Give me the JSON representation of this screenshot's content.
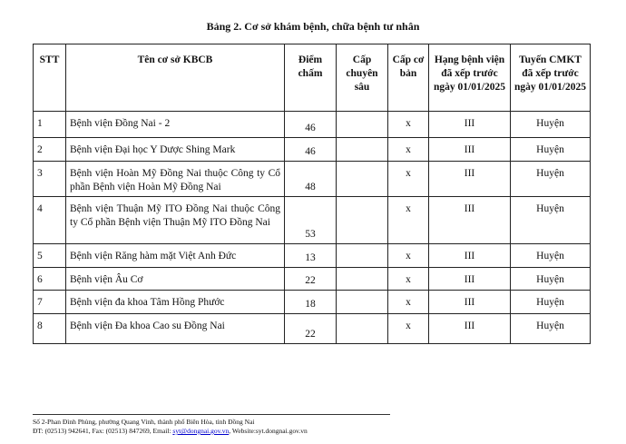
{
  "title": "Bảng 2. Cơ sở khám bệnh, chữa bệnh tư nhân",
  "headers": [
    "STT",
    "Tên cơ sở KBCB",
    "Điểm chấm",
    "Cấp chuyên sâu",
    "Cấp cơ bản",
    "Hạng bệnh viện đã xếp trước ngày 01/01/2025",
    "Tuyến CMKT đã xếp trước ngày 01/01/2025"
  ],
  "rows": [
    {
      "stt": "1",
      "name": "Bệnh viện Đồng Nai - 2",
      "score": "46",
      "advanced": "",
      "basic": "x",
      "rank": "III",
      "level": "Huyện"
    },
    {
      "stt": "2",
      "name": "Bệnh viện Đại học Y Dược Shing Mark",
      "score": "46",
      "advanced": "",
      "basic": "x",
      "rank": "III",
      "level": "Huyện"
    },
    {
      "stt": "3",
      "name": "Bệnh viện Hoàn Mỹ Đồng Nai thuộc Công ty Cổ phần Bệnh viện Hoàn Mỹ Đồng Nai",
      "score": "48",
      "advanced": "",
      "basic": "x",
      "rank": "III",
      "level": "Huyện"
    },
    {
      "stt": "4",
      "name": "Bệnh viện Thuận Mỹ ITO Đồng Nai thuộc Công ty Cổ phần Bệnh viện Thuận Mỹ ITO Đồng Nai",
      "score": "53",
      "advanced": "",
      "basic": "x",
      "rank": "III",
      "level": "Huyện"
    },
    {
      "stt": "5",
      "name": "Bệnh viện Răng hàm mặt Việt Anh Đức",
      "score": "13",
      "advanced": "",
      "basic": "x",
      "rank": "III",
      "level": "Huyện"
    },
    {
      "stt": "6",
      "name": "Bệnh viện Âu Cơ",
      "score": "22",
      "advanced": "",
      "basic": "x",
      "rank": "III",
      "level": "Huyện"
    },
    {
      "stt": "7",
      "name": "Bệnh viện đa khoa Tâm Hồng Phước",
      "score": "18",
      "advanced": "",
      "basic": "x",
      "rank": "III",
      "level": "Huyện"
    },
    {
      "stt": "8",
      "name": "Bệnh viện Đa khoa Cao su Đồng Nai",
      "score": "22",
      "advanced": "",
      "basic": "x",
      "rank": "III",
      "level": "Huyện"
    }
  ],
  "footer": {
    "address": "Số 2-Phan Đình Phùng, phường Quang Vinh, thành phố Biên Hòa, tỉnh Đồng Nai",
    "contact_prefix": "ĐT: (02513) 942641, Fax: (02513) 847269, Email: ",
    "email": "syt@dongnai.gov.vn",
    "website": ", Website:syt.dongnai.gov.vn"
  }
}
